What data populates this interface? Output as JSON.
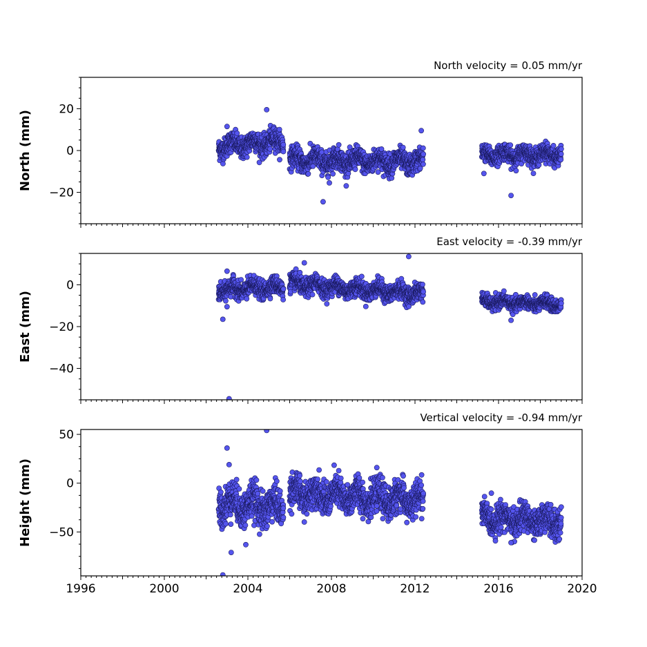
{
  "figure": {
    "x_ticks": [
      "1996",
      "2000",
      "2004",
      "2008",
      "2012",
      "2016",
      "2020"
    ],
    "x_tick_values": [
      1996,
      2000,
      2004,
      2008,
      2012,
      2016,
      2020
    ],
    "xlim": [
      1996,
      2020
    ],
    "marker_color": "#5555ee",
    "marker_edge_color": "#1a1a60"
  },
  "chart_data": [
    {
      "type": "scatter",
      "title": "North velocity = 0.05 mm/yr",
      "xlabel": "",
      "ylabel": "North (mm)",
      "ylim": [
        -35,
        35
      ],
      "y_ticks": [
        "20",
        "0",
        "−20"
      ],
      "y_tick_values": [
        20,
        0,
        -20
      ],
      "segments": [
        {
          "x_start": 2002.6,
          "x_end": 2005.7,
          "mean_start": 2.0,
          "mean_end": 4.5,
          "spread": 2.5
        },
        {
          "x_start": 2006.0,
          "x_end": 2012.4,
          "mean_start": -4.5,
          "mean_end": -5.5,
          "spread": 2.5
        },
        {
          "x_start": 2015.2,
          "x_end": 2019.0,
          "mean_start": -2.0,
          "mean_end": -2.0,
          "spread": 2.0
        }
      ],
      "outliers": [
        {
          "x": 2004.9,
          "y": 19.5
        },
        {
          "x": 2007.6,
          "y": -24.5
        },
        {
          "x": 2016.6,
          "y": -21.5
        },
        {
          "x": 2012.3,
          "y": 9.5
        },
        {
          "x": 2003.0,
          "y": 11.5
        },
        {
          "x": 2007.9,
          "y": -15.5
        },
        {
          "x": 2015.3,
          "y": -11.0
        }
      ]
    },
    {
      "type": "scatter",
      "title": "East velocity = -0.39 mm/yr",
      "xlabel": "",
      "ylabel": "East (mm)",
      "ylim": [
        -55,
        15
      ],
      "y_ticks": [
        "0",
        "−20",
        "−40"
      ],
      "y_tick_values": [
        0,
        -20,
        -40
      ],
      "segments": [
        {
          "x_start": 2002.6,
          "x_end": 2005.7,
          "mean_start": -2.5,
          "mean_end": -1.0,
          "spread": 2.0
        },
        {
          "x_start": 2006.0,
          "x_end": 2012.4,
          "mean_start": 0.5,
          "mean_end": -4.5,
          "spread": 2.0
        },
        {
          "x_start": 2015.2,
          "x_end": 2019.0,
          "mean_start": -8.0,
          "mean_end": -9.5,
          "spread": 1.5
        }
      ],
      "outliers": [
        {
          "x": 2003.1,
          "y": -54.5
        },
        {
          "x": 2011.7,
          "y": 13.5
        },
        {
          "x": 2006.7,
          "y": 10.5
        },
        {
          "x": 2002.8,
          "y": -16.5
        },
        {
          "x": 2016.6,
          "y": -17.0
        },
        {
          "x": 2003.0,
          "y": 6.5
        },
        {
          "x": 2003.0,
          "y": -10.5
        }
      ]
    },
    {
      "type": "scatter",
      "title": "Vertical velocity = -0.94 mm/yr",
      "xlabel": "",
      "ylabel": "Height (mm)",
      "ylim": [
        -95,
        55
      ],
      "y_ticks": [
        "50",
        "0",
        "−50"
      ],
      "y_tick_values": [
        50,
        0,
        -50
      ],
      "segments": [
        {
          "x_start": 2002.6,
          "x_end": 2005.7,
          "mean_start": -20.0,
          "mean_end": -25.0,
          "spread": 9.0
        },
        {
          "x_start": 2006.0,
          "x_end": 2012.4,
          "mean_start": -10.0,
          "mean_end": -18.0,
          "spread": 8.0
        },
        {
          "x_start": 2015.2,
          "x_end": 2019.0,
          "mean_start": -35.0,
          "mean_end": -40.0,
          "spread": 7.0
        }
      ],
      "outliers": [
        {
          "x": 2004.9,
          "y": 54.0
        },
        {
          "x": 2003.0,
          "y": 36.0
        },
        {
          "x": 2003.1,
          "y": 19.0
        },
        {
          "x": 2003.2,
          "y": -71.0
        },
        {
          "x": 2002.8,
          "y": -94.0
        },
        {
          "x": 2003.9,
          "y": -63.0
        },
        {
          "x": 2016.6,
          "y": -61.0
        }
      ]
    }
  ]
}
